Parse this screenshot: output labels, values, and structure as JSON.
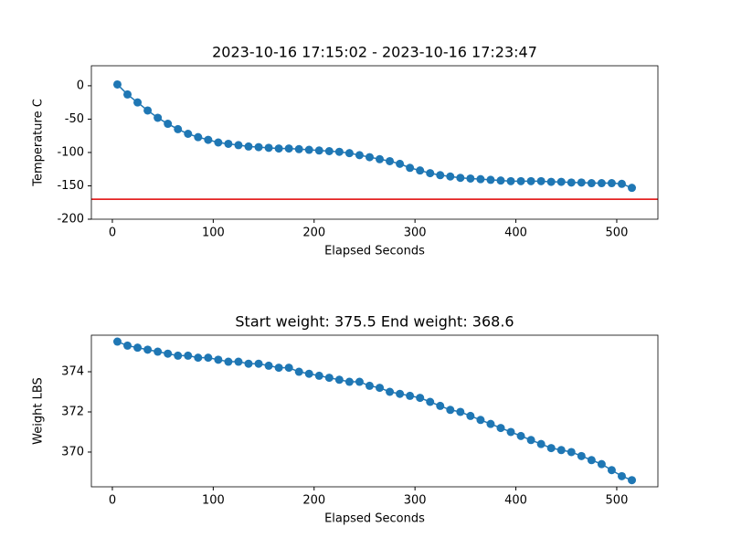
{
  "chart_data": [
    {
      "type": "line",
      "title": "2023-10-16 17:15:02 - 2023-10-16 17:23:47",
      "xlabel": "Elapsed Seconds",
      "ylabel": "Temperature C",
      "x": [
        5,
        15,
        25,
        35,
        45,
        55,
        65,
        75,
        85,
        95,
        105,
        115,
        125,
        135,
        145,
        155,
        165,
        175,
        185,
        195,
        205,
        215,
        225,
        235,
        245,
        255,
        265,
        275,
        285,
        295,
        305,
        315,
        325,
        335,
        345,
        355,
        365,
        375,
        385,
        395,
        405,
        415,
        425,
        435,
        445,
        455,
        465,
        475,
        485,
        495,
        505,
        515
      ],
      "series": [
        {
          "color": "#1f77b4",
          "values": [
            2,
            -13,
            -25,
            -37,
            -48,
            -57,
            -65,
            -72,
            -77,
            -81,
            -85,
            -87,
            -89,
            -91,
            -92,
            -93,
            -94,
            -94,
            -95,
            -96,
            -97,
            -98,
            -99,
            -101,
            -104,
            -107,
            -110,
            -113,
            -117,
            -123,
            -127,
            -131,
            -134,
            -136,
            -138,
            -139,
            -140,
            -141,
            -142,
            -143,
            -143,
            -143,
            -143,
            -144,
            -144,
            -145,
            -145,
            -146,
            -146,
            -146,
            -147,
            -153
          ]
        }
      ],
      "hline": {
        "value": -170,
        "color": "#e00000"
      },
      "xlim": [
        -20.8,
        540.8
      ],
      "xticks": [
        0,
        100,
        200,
        300,
        400,
        500
      ],
      "ylim": [
        -200,
        30
      ],
      "yticks": [
        -200,
        -150,
        -100,
        -50,
        0
      ]
    },
    {
      "type": "line",
      "title": "Start weight: 375.5 End weight: 368.6",
      "xlabel": "Elapsed Seconds",
      "ylabel": "Weight LBS",
      "x": [
        5,
        15,
        25,
        35,
        45,
        55,
        65,
        75,
        85,
        95,
        105,
        115,
        125,
        135,
        145,
        155,
        165,
        175,
        185,
        195,
        205,
        215,
        225,
        235,
        245,
        255,
        265,
        275,
        285,
        295,
        305,
        315,
        325,
        335,
        345,
        355,
        365,
        375,
        385,
        395,
        405,
        415,
        425,
        435,
        445,
        455,
        465,
        475,
        485,
        495,
        505,
        515
      ],
      "series": [
        {
          "color": "#1f77b4",
          "values": [
            375.5,
            375.3,
            375.2,
            375.1,
            375.0,
            374.9,
            374.8,
            374.8,
            374.7,
            374.7,
            374.6,
            374.5,
            374.5,
            374.4,
            374.4,
            374.3,
            374.2,
            374.2,
            374.0,
            373.9,
            373.8,
            373.7,
            373.6,
            373.5,
            373.5,
            373.3,
            373.2,
            373.0,
            372.9,
            372.8,
            372.7,
            372.5,
            372.3,
            372.1,
            372.0,
            371.8,
            371.6,
            371.4,
            371.2,
            371.0,
            370.8,
            370.6,
            370.4,
            370.2,
            370.1,
            370.0,
            369.8,
            369.6,
            369.4,
            369.1,
            368.8,
            368.6
          ]
        }
      ],
      "xlim": [
        -20.8,
        540.8
      ],
      "xticks": [
        0,
        100,
        200,
        300,
        400,
        500
      ],
      "ylim": [
        368.27,
        375.82
      ],
      "yticks": [
        370,
        372,
        374
      ]
    }
  ]
}
